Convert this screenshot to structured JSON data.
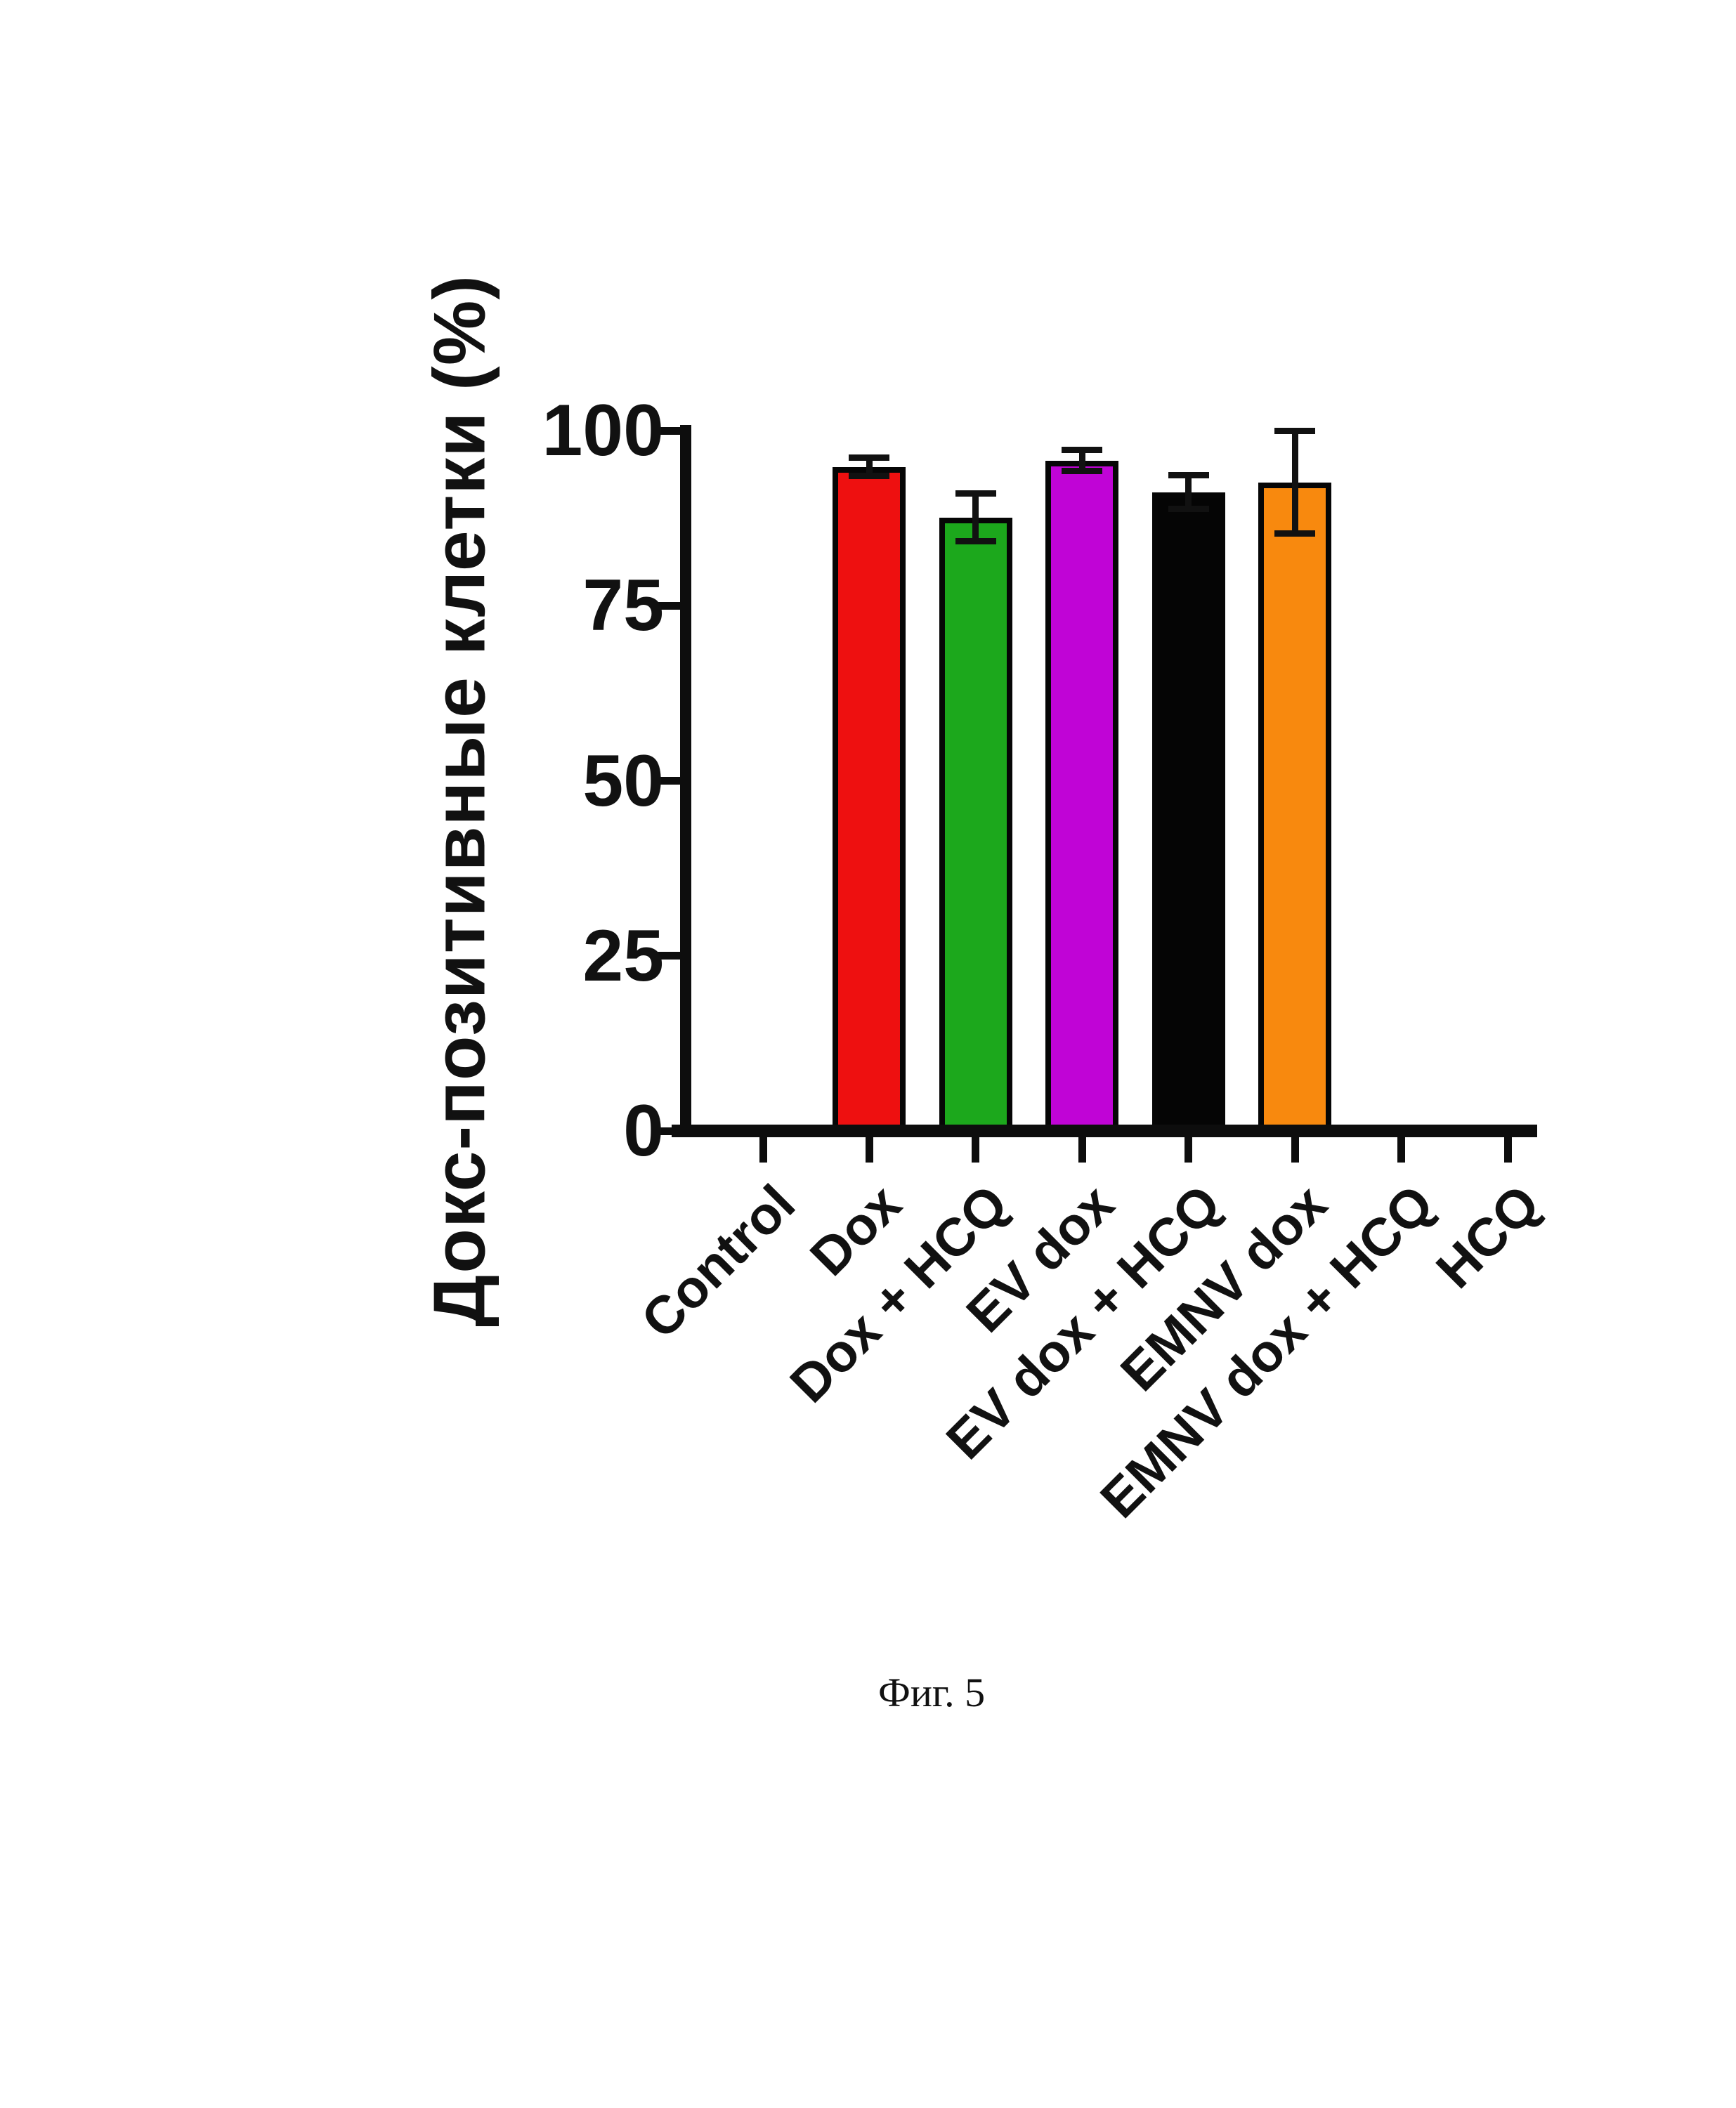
{
  "figure": {
    "caption": "Фиг. 5"
  },
  "chart_data": {
    "type": "bar",
    "title": "",
    "xlabel": "",
    "ylabel": "Докс-позитивные клетки (%)",
    "ylim": [
      0,
      100
    ],
    "yticks": [
      0,
      25,
      50,
      75,
      100
    ],
    "grid": false,
    "legend": false,
    "error_bars": true,
    "categories": [
      "Control",
      "Dox",
      "Dox + HCQ",
      "EV dox",
      "EV dox + HCQ",
      "EMNV dox",
      "EMNV dox + HCQ",
      "HCQ"
    ],
    "values": [
      0,
      94.8,
      87.6,
      95.7,
      91.2,
      92.6,
      0,
      0
    ],
    "errors": [
      0,
      1.3,
      3.4,
      1.5,
      2.4,
      7.3,
      0,
      0
    ],
    "bar_colors": [
      "none",
      "#ee1010",
      "#1ca81c",
      "#c004d6",
      "#050505",
      "#f8890e",
      "none",
      "none"
    ],
    "axis_color": "#0d0d0d"
  }
}
